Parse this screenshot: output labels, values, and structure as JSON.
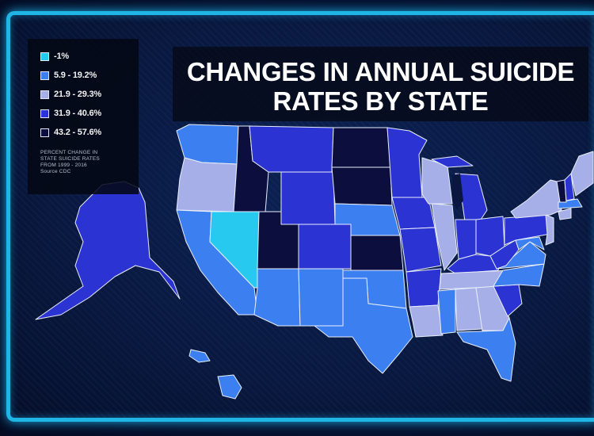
{
  "title": {
    "line1": "CHANGES IN ANNUAL SUICIDE",
    "line2": "RATES BY STATE"
  },
  "legend": {
    "items": [
      {
        "label": "-1%",
        "color": "#28c9ee"
      },
      {
        "label": "5.9 - 19.2%",
        "color": "#3b7ff0"
      },
      {
        "label": "21.9 - 29.3%",
        "color": "#a6afe8"
      },
      {
        "label": "31.9 - 40.6%",
        "color": "#2b33d2"
      },
      {
        "label": "43.2 - 57.6%",
        "color": "#0c0f3e"
      }
    ],
    "note_line1": "PERCENT CHANGE IN",
    "note_line2": "STATE SUICIDE RATES",
    "note_line3": "FROM 1999 - 2016",
    "source": "Source CDC"
  },
  "colors": {
    "frame": "#1fb6e6",
    "background": "#08183f",
    "state_border": "#e8eefc"
  },
  "states": [
    {
      "id": "WA",
      "group": 1
    },
    {
      "id": "OR",
      "group": 2
    },
    {
      "id": "CA",
      "group": 1
    },
    {
      "id": "NV",
      "group": 0
    },
    {
      "id": "ID",
      "group": 4
    },
    {
      "id": "MT",
      "group": 3
    },
    {
      "id": "WY",
      "group": 3
    },
    {
      "id": "UT",
      "group": 4
    },
    {
      "id": "CO",
      "group": 3
    },
    {
      "id": "AZ",
      "group": 1
    },
    {
      "id": "NM",
      "group": 1
    },
    {
      "id": "ND",
      "group": 4
    },
    {
      "id": "SD",
      "group": 4
    },
    {
      "id": "NE",
      "group": 1
    },
    {
      "id": "KS",
      "group": 4
    },
    {
      "id": "OK",
      "group": 1
    },
    {
      "id": "TX",
      "group": 1
    },
    {
      "id": "MN",
      "group": 3
    },
    {
      "id": "IA",
      "group": 3
    },
    {
      "id": "MO",
      "group": 3
    },
    {
      "id": "AR",
      "group": 3
    },
    {
      "id": "LA",
      "group": 2
    },
    {
      "id": "WI",
      "group": 2
    },
    {
      "id": "IL",
      "group": 2
    },
    {
      "id": "MI",
      "group": 3
    },
    {
      "id": "IN",
      "group": 3
    },
    {
      "id": "OH",
      "group": 3
    },
    {
      "id": "KY",
      "group": 3
    },
    {
      "id": "TN",
      "group": 2
    },
    {
      "id": "MS",
      "group": 1
    },
    {
      "id": "AL",
      "group": 2
    },
    {
      "id": "GA",
      "group": 2
    },
    {
      "id": "FL",
      "group": 1
    },
    {
      "id": "SC",
      "group": 3
    },
    {
      "id": "NC",
      "group": 1
    },
    {
      "id": "VA",
      "group": 1
    },
    {
      "id": "WV",
      "group": 3
    },
    {
      "id": "PA",
      "group": 3
    },
    {
      "id": "NY",
      "group": 2
    },
    {
      "id": "VT",
      "group": 4
    },
    {
      "id": "NH",
      "group": 3
    },
    {
      "id": "ME",
      "group": 2
    },
    {
      "id": "MA",
      "group": 1
    },
    {
      "id": "CT",
      "group": 2
    },
    {
      "id": "NJ",
      "group": 2
    },
    {
      "id": "MD",
      "group": 1
    },
    {
      "id": "AK",
      "group": 3
    },
    {
      "id": "HI",
      "group": 1
    }
  ]
}
